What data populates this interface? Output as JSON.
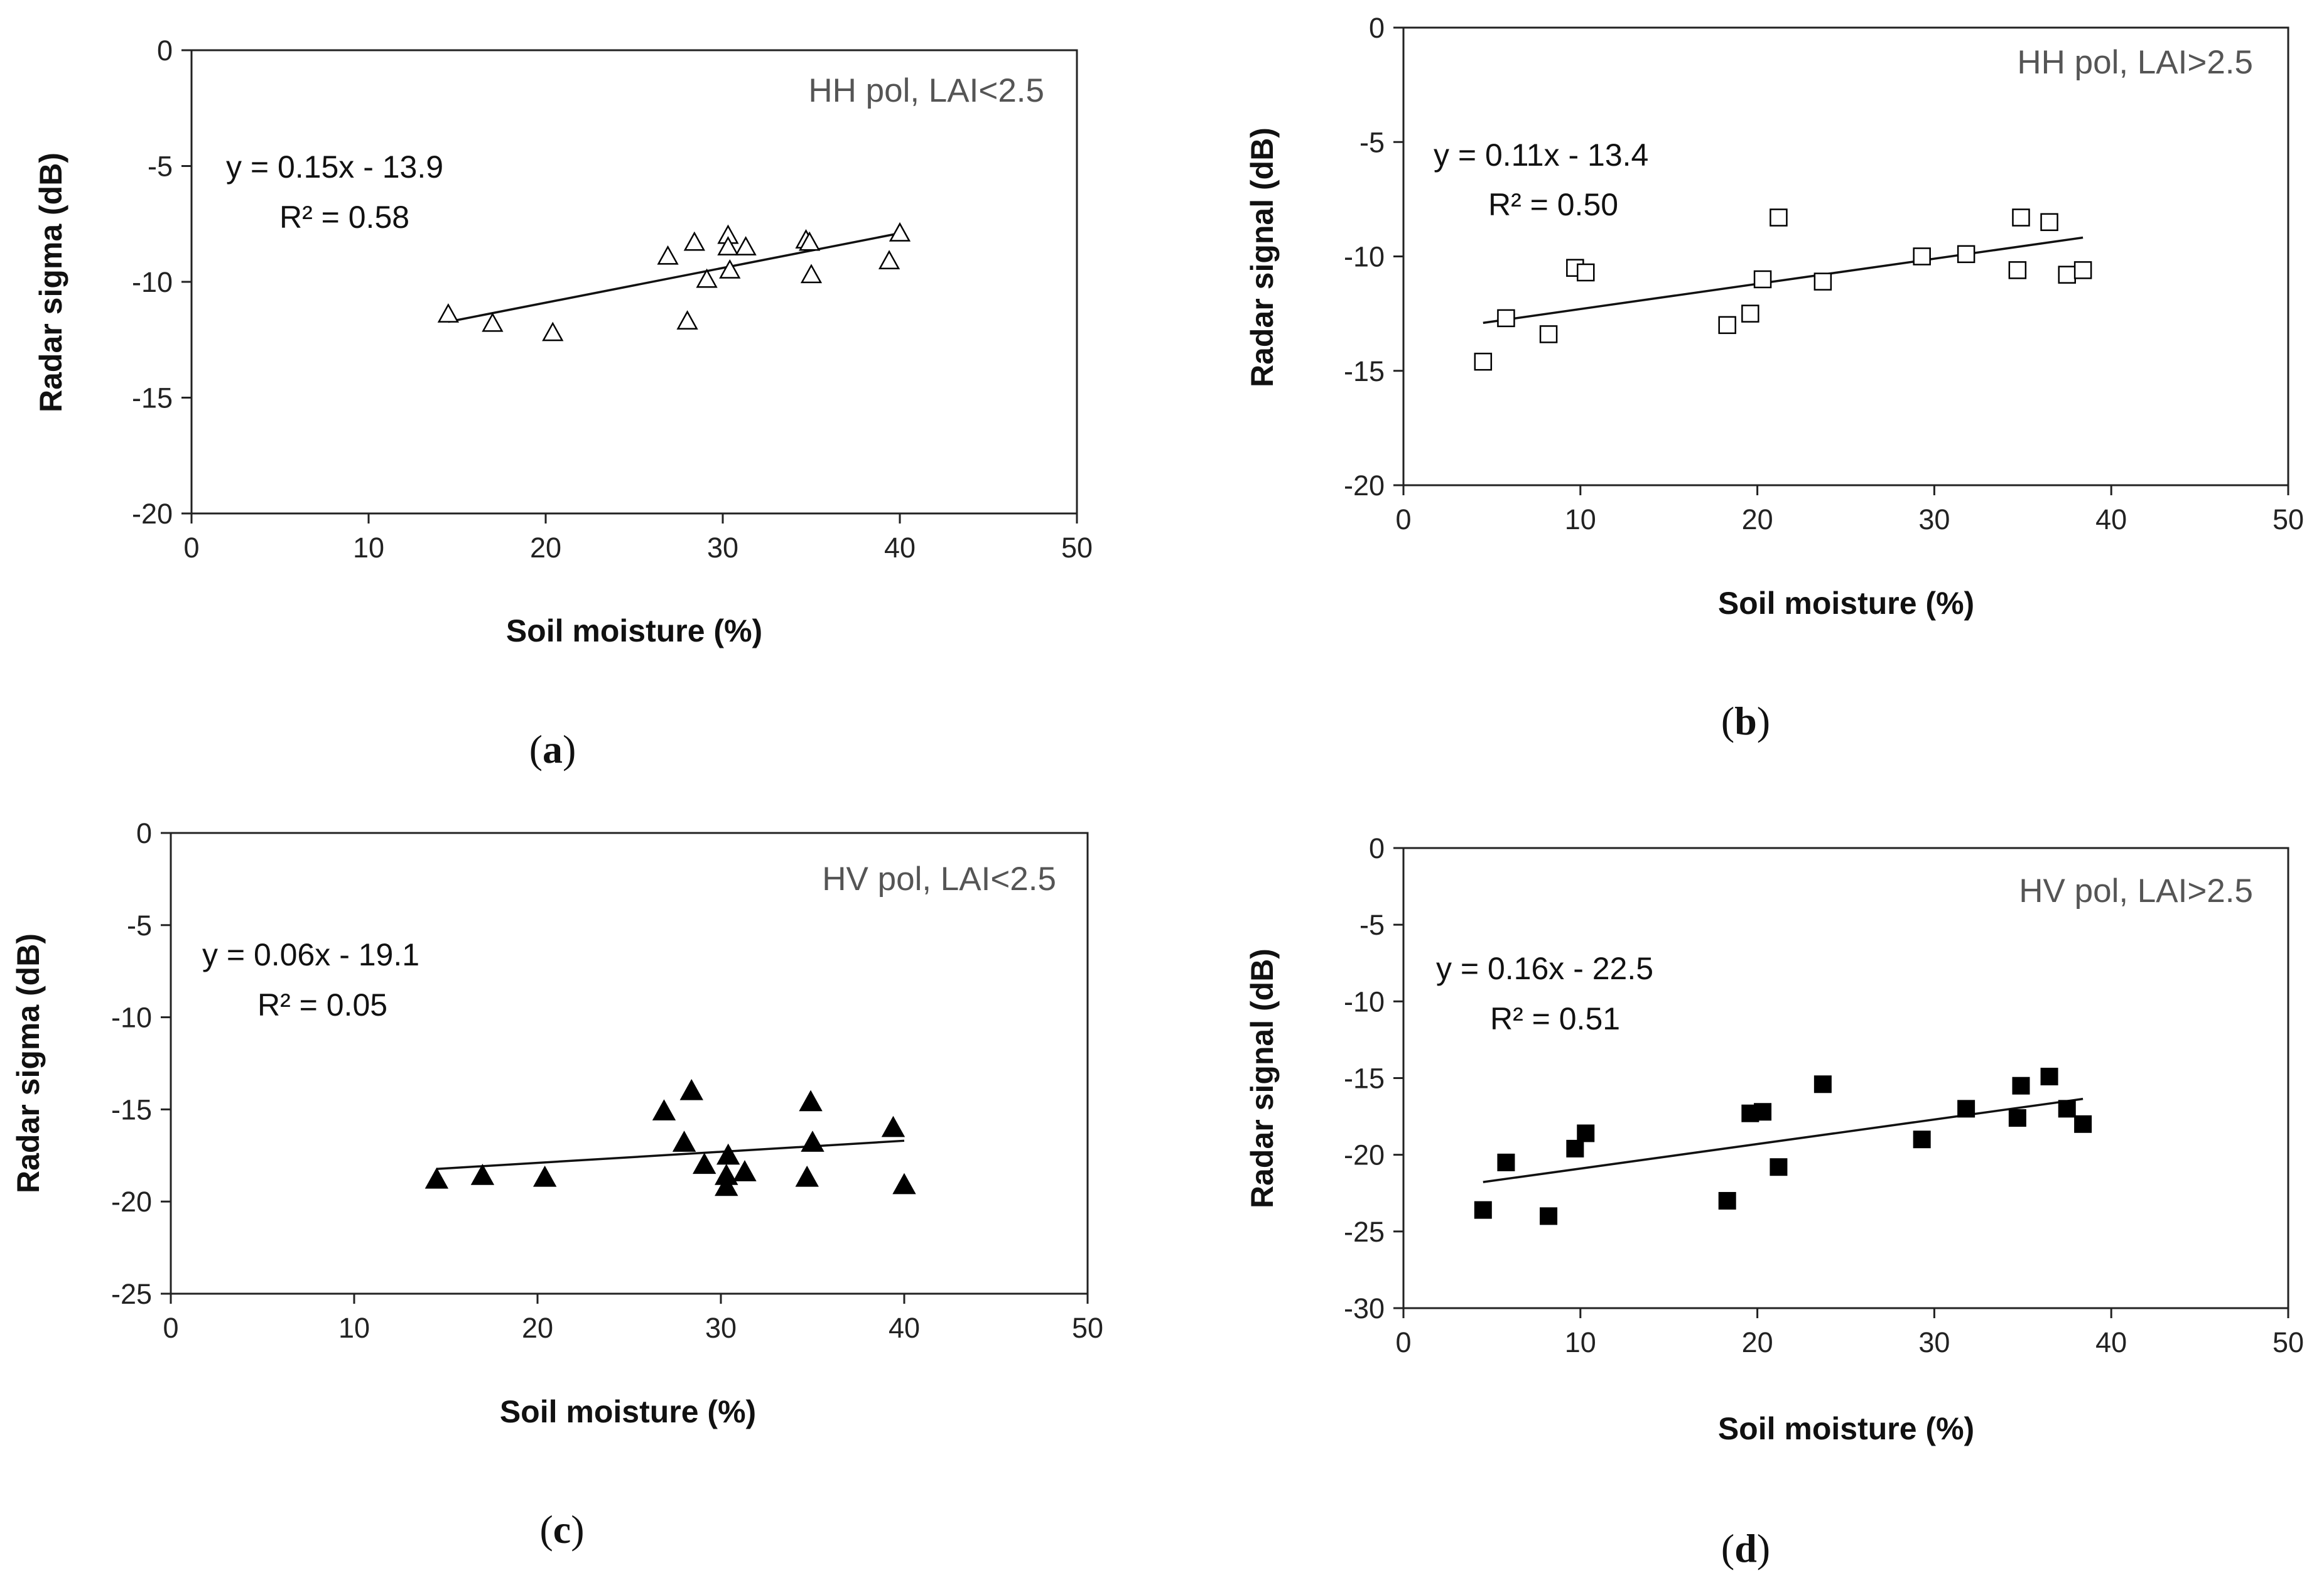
{
  "chart_data": [
    {
      "type": "scatter",
      "panel": "(a)",
      "panel_open": "(",
      "panel_letter": "a",
      "panel_close": ")",
      "annotation": "HH pol, LAI<2.5",
      "equation": "y = 0.15x - 13.9",
      "r2": "R² = 0.58",
      "xlabel": "Soil moisture (%)",
      "ylabel": "Radar sigma (dB)",
      "xlim": [
        0,
        50
      ],
      "ylim": [
        -20,
        0
      ],
      "xticks": [
        "0",
        "10",
        "20",
        "30",
        "40",
        "50"
      ],
      "yticks": [
        "0",
        "-5",
        "-10",
        "-15",
        "-20"
      ],
      "marker": "triangle-open",
      "trendline": {
        "slope": 0.15,
        "intercept": -13.9,
        "x_range": [
          14.5,
          40
        ]
      },
      "x": [
        14.5,
        17,
        20.4,
        26.9,
        28,
        28.4,
        29.1,
        30.3,
        30.3,
        30.4,
        31.3,
        34.7,
        34.9,
        35,
        39.4,
        40
      ],
      "y": [
        -11.4,
        -11.8,
        -12.2,
        -8.9,
        -11.7,
        -8.3,
        -9.9,
        -8.0,
        -8.5,
        -9.5,
        -8.5,
        -8.2,
        -8.3,
        -9.7,
        -9.1,
        -7.9
      ]
    },
    {
      "type": "scatter",
      "panel": "(b)",
      "panel_open": "(",
      "panel_letter": "b",
      "panel_close": ")",
      "annotation": "HH pol, LAI>2.5",
      "equation": "y = 0.11x - 13.4",
      "r2": "R² = 0.50",
      "xlabel": "Soil moisture (%)",
      "ylabel": "Radar signal (dB)",
      "xlim": [
        0,
        50
      ],
      "ylim": [
        -20,
        0
      ],
      "xticks": [
        "0",
        "10",
        "20",
        "30",
        "40",
        "50"
      ],
      "yticks": [
        "0",
        "-5",
        "-10",
        "-15",
        "-20"
      ],
      "marker": "square-open",
      "trendline": {
        "slope": 0.11,
        "intercept": -13.4,
        "x_range": [
          4.5,
          38.4
        ]
      },
      "x": [
        4.5,
        5.8,
        8.2,
        9.7,
        10.3,
        18.3,
        19.6,
        20.3,
        21.2,
        23.7,
        29.3,
        31.8,
        34.7,
        34.9,
        36.5,
        37.5,
        38.4
      ],
      "y": [
        -14.6,
        -12.7,
        -13.4,
        -10.5,
        -10.7,
        -13.0,
        -12.5,
        -11.0,
        -8.3,
        -11.1,
        -10.0,
        -9.9,
        -10.6,
        -8.3,
        -8.5,
        -10.8,
        -10.6
      ]
    },
    {
      "type": "scatter",
      "panel": "(c)",
      "panel_open": "(",
      "panel_letter": "c",
      "panel_close": ")",
      "annotation": "HV pol, LAI<2.5",
      "equation": "y = 0.06x - 19.1",
      "r2": "R² = 0.05",
      "xlabel": "Soil moisture (%)",
      "ylabel": "Radar sigma (dB)",
      "xlim": [
        0,
        50
      ],
      "ylim": [
        -25,
        0
      ],
      "xticks": [
        "0",
        "10",
        "20",
        "30",
        "40",
        "50"
      ],
      "yticks": [
        "0",
        "-5",
        "-10",
        "-15",
        "-20",
        "-25"
      ],
      "marker": "triangle-filled",
      "trendline": {
        "slope": 0.06,
        "intercept": -19.1,
        "x_range": [
          14.5,
          40
        ]
      },
      "x": [
        14.5,
        17,
        20.4,
        26.9,
        28,
        28.4,
        29.1,
        30.3,
        30.3,
        30.4,
        31.3,
        34.7,
        34.9,
        35,
        39.4,
        40
      ],
      "y": [
        -18.8,
        -18.6,
        -18.7,
        -15.1,
        -16.8,
        -14.0,
        -18.0,
        -18.6,
        -19.2,
        -17.5,
        -18.4,
        -18.7,
        -14.6,
        -16.8,
        -16.0,
        -19.1
      ]
    },
    {
      "type": "scatter",
      "panel": "(d)",
      "panel_open": "(",
      "panel_letter": "d",
      "panel_close": ")",
      "annotation": "HV pol, LAI>2.5",
      "equation": "y = 0.16x - 22.5",
      "r2": "R² = 0.51",
      "xlabel": "Soil moisture (%)",
      "ylabel": "Radar signal (dB)",
      "xlim": [
        0,
        50
      ],
      "ylim": [
        -30,
        0
      ],
      "xticks": [
        "0",
        "10",
        "20",
        "30",
        "40",
        "50"
      ],
      "yticks": [
        "0",
        "-5",
        "-10",
        "-15",
        "-20",
        "-25",
        "-30"
      ],
      "marker": "square-filled",
      "trendline": {
        "slope": 0.16,
        "intercept": -22.5,
        "x_range": [
          4.5,
          38.4
        ]
      },
      "x": [
        4.5,
        5.8,
        8.2,
        9.7,
        10.3,
        18.3,
        19.6,
        20.3,
        21.2,
        23.7,
        29.3,
        31.8,
        34.7,
        34.9,
        36.5,
        37.5,
        38.4
      ],
      "y": [
        -23.6,
        -20.5,
        -24.0,
        -19.6,
        -18.6,
        -23.0,
        -17.3,
        -17.2,
        -20.8,
        -15.4,
        -19.0,
        -17.0,
        -17.6,
        -15.5,
        -14.9,
        -17.0,
        -18.0
      ]
    }
  ]
}
